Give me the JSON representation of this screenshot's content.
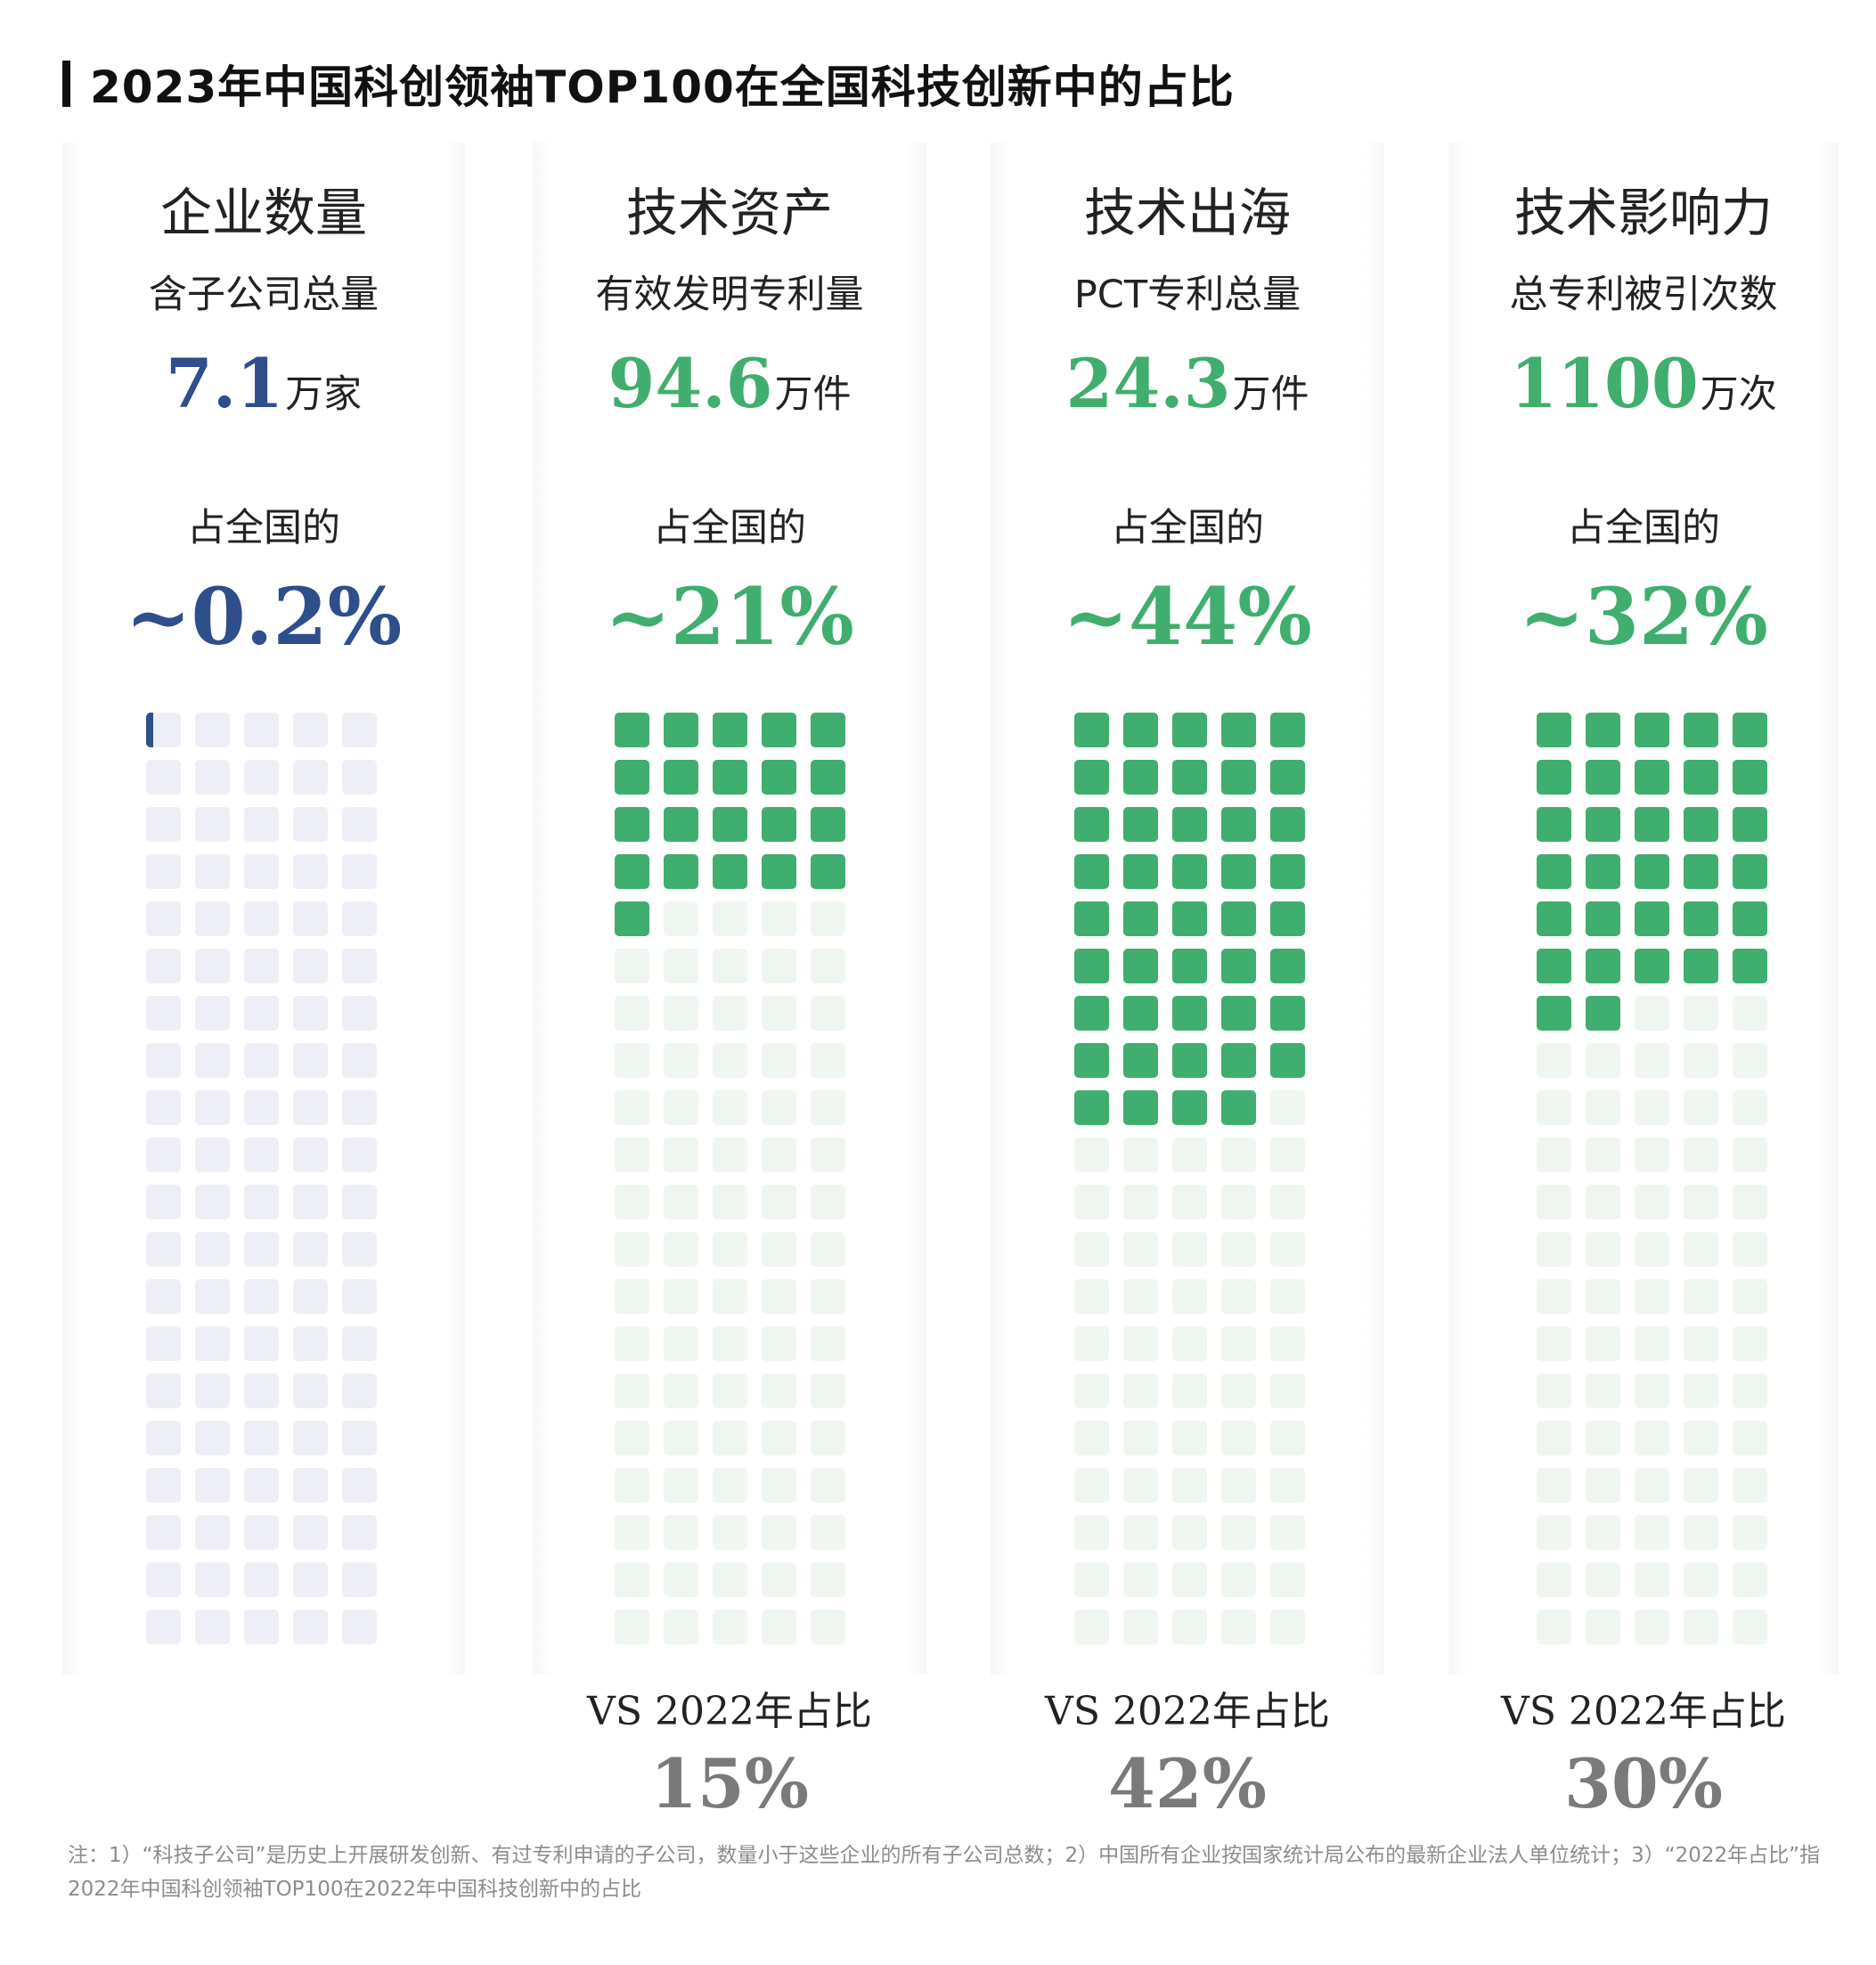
{
  "title": "2023年中国科创领袖TOP100在全国科技创新中的占比",
  "chart_data": [
    {
      "type": "waffle",
      "grid": {
        "columns": 5,
        "rows": 20,
        "cells": 100
      },
      "heading": "企业数量",
      "subtitle": "含子公司总量",
      "value": "7.1",
      "unit": "万家",
      "share_label": "占全国的",
      "share_text": "~0.2%",
      "share_percent": 0.2,
      "accent_color": "#2e4e8c",
      "empty_color": "#eeeff6",
      "vs_label": "",
      "vs_value": ""
    },
    {
      "type": "waffle",
      "grid": {
        "columns": 5,
        "rows": 20,
        "cells": 100
      },
      "heading": "技术资产",
      "subtitle": "有效发明专利量",
      "value": "94.6",
      "unit": "万件",
      "share_label": "占全国的",
      "share_text": "~21%",
      "share_percent": 21,
      "accent_color": "#3fae6e",
      "empty_color": "#eff6f0",
      "vs_label": "VS 2022年占比",
      "vs_value": "15%"
    },
    {
      "type": "waffle",
      "grid": {
        "columns": 5,
        "rows": 20,
        "cells": 100
      },
      "heading": "技术出海",
      "subtitle": "PCT专利总量",
      "value": "24.3",
      "unit": "万件",
      "share_label": "占全国的",
      "share_text": "~44%",
      "share_percent": 44,
      "accent_color": "#3fae6e",
      "empty_color": "#eff6f0",
      "vs_label": "VS 2022年占比",
      "vs_value": "42%"
    },
    {
      "type": "waffle",
      "grid": {
        "columns": 5,
        "rows": 20,
        "cells": 100
      },
      "heading": "技术影响力",
      "subtitle": "总专利被引次数",
      "value": "1100",
      "unit": "万次",
      "share_label": "占全国的",
      "share_text": "~32%",
      "share_percent": 32,
      "accent_color": "#3fae6e",
      "empty_color": "#eff6f0",
      "vs_label": "VS 2022年占比",
      "vs_value": "30%"
    }
  ],
  "note": "注：1）“科技子公司”是历史上开展研发创新、有过专利申请的子公司，数量小于这些企业的所有子公司总数；2）中国所有企业按国家统计局公布的最新企业法人单位统计；3）“2022年占比”指2022年中国科创领袖TOP100在2022年中国科技创新中的占比"
}
